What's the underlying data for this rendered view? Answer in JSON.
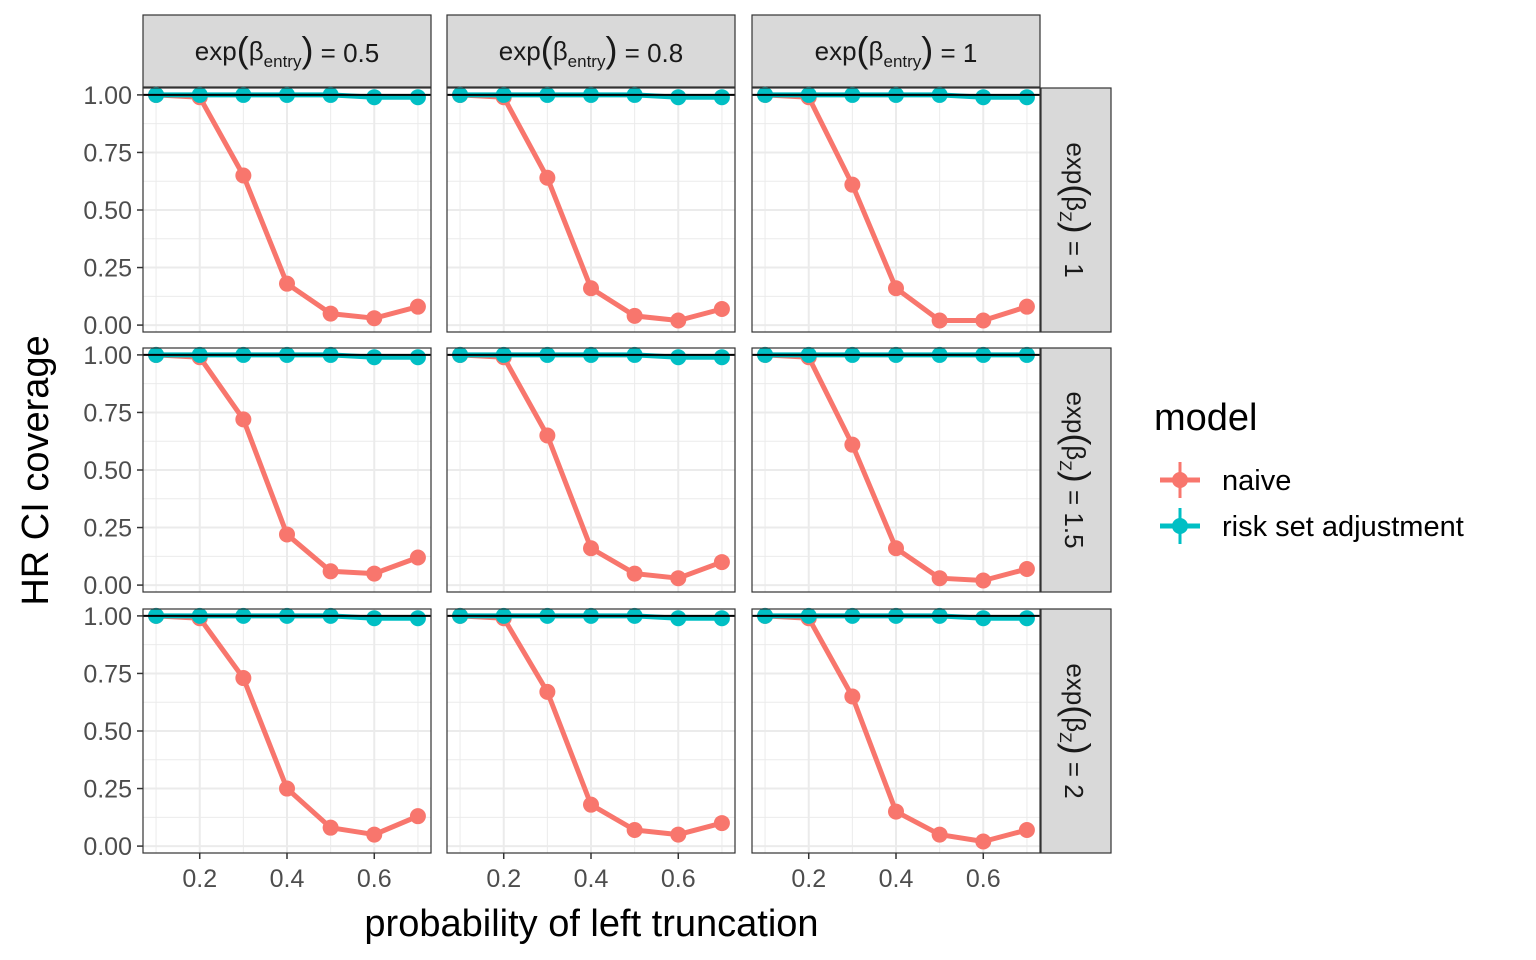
{
  "chart_data": {
    "type": "line",
    "facet": "grid",
    "ylabel": "HR CI coverage",
    "xlabel": "probability of left truncation",
    "x": [
      0.1,
      0.2,
      0.3,
      0.4,
      0.5,
      0.6,
      0.7
    ],
    "xlim": [
      0.07,
      0.73
    ],
    "ylim": [
      -0.03,
      1.03
    ],
    "x_ticks": [
      0.2,
      0.4,
      0.6
    ],
    "x_tick_labels": [
      "0.2",
      "0.4",
      "0.6"
    ],
    "y_ticks": [
      0,
      0.25,
      0.5,
      0.75,
      1
    ],
    "y_tick_labels": [
      "0.00",
      "0.25",
      "0.50",
      "0.75",
      "1.00"
    ],
    "reference_line": 1,
    "column_facets": [
      {
        "prefix": "exp",
        "symbol": "β",
        "subscript": "entry",
        "suffix": " = 0.5"
      },
      {
        "prefix": "exp",
        "symbol": "β",
        "subscript": "entry",
        "suffix": " = 0.8"
      },
      {
        "prefix": "exp",
        "symbol": "β",
        "subscript": "entry",
        "suffix": " = 1"
      }
    ],
    "row_facets": [
      {
        "prefix": "exp",
        "symbol": "β",
        "subscript": "Z",
        "suffix": " = 1"
      },
      {
        "prefix": "exp",
        "symbol": "β",
        "subscript": "Z",
        "suffix": " = 1.5"
      },
      {
        "prefix": "exp",
        "symbol": "β",
        "subscript": "Z",
        "suffix": " = 2"
      }
    ],
    "legend": {
      "title": "model",
      "position": "right",
      "entries": [
        {
          "name": "naive",
          "color": "#F8766D"
        },
        {
          "name": "risk set adjustment",
          "color": "#00BFC4"
        }
      ]
    },
    "panels": [
      [
        {
          "naive": [
            1.0,
            0.99,
            0.65,
            0.18,
            0.05,
            0.03,
            0.08
          ],
          "risk_set": [
            1.0,
            1.0,
            1.0,
            1.0,
            1.0,
            0.99,
            0.99
          ]
        },
        {
          "naive": [
            1.0,
            0.99,
            0.64,
            0.16,
            0.04,
            0.02,
            0.07
          ],
          "risk_set": [
            1.0,
            1.0,
            1.0,
            1.0,
            1.0,
            0.99,
            0.99
          ]
        },
        {
          "naive": [
            1.0,
            0.99,
            0.61,
            0.16,
            0.02,
            0.02,
            0.08
          ],
          "risk_set": [
            1.0,
            1.0,
            1.0,
            1.0,
            1.0,
            0.99,
            0.99
          ]
        }
      ],
      [
        {
          "naive": [
            1.0,
            0.99,
            0.72,
            0.22,
            0.06,
            0.05,
            0.12
          ],
          "risk_set": [
            1.0,
            1.0,
            1.0,
            1.0,
            1.0,
            0.99,
            0.99
          ]
        },
        {
          "naive": [
            1.0,
            0.99,
            0.65,
            0.16,
            0.05,
            0.03,
            0.1
          ],
          "risk_set": [
            1.0,
            1.0,
            1.0,
            1.0,
            1.0,
            0.99,
            0.99
          ]
        },
        {
          "naive": [
            1.0,
            0.99,
            0.61,
            0.16,
            0.03,
            0.02,
            0.07
          ],
          "risk_set": [
            1.0,
            1.0,
            1.0,
            1.0,
            1.0,
            1.0,
            1.0
          ]
        }
      ],
      [
        {
          "naive": [
            1.0,
            0.99,
            0.73,
            0.25,
            0.08,
            0.05,
            0.13
          ],
          "risk_set": [
            1.0,
            1.0,
            1.0,
            1.0,
            1.0,
            0.99,
            0.99
          ]
        },
        {
          "naive": [
            1.0,
            0.99,
            0.67,
            0.18,
            0.07,
            0.05,
            0.1
          ],
          "risk_set": [
            1.0,
            1.0,
            1.0,
            1.0,
            1.0,
            0.99,
            0.99
          ]
        },
        {
          "naive": [
            1.0,
            0.99,
            0.65,
            0.15,
            0.05,
            0.02,
            0.07
          ],
          "risk_set": [
            1.0,
            1.0,
            1.0,
            1.0,
            1.0,
            0.99,
            0.99
          ]
        }
      ]
    ]
  }
}
